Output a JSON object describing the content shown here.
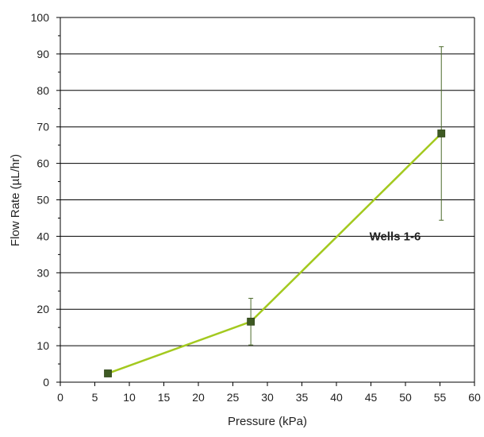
{
  "chart_data": {
    "type": "line",
    "title": "",
    "xlabel": "Pressure (kPa)",
    "ylabel": "Flow Rate (µL/hr)",
    "xlim": [
      0,
      60
    ],
    "ylim": [
      0,
      100
    ],
    "x_ticks": [
      0,
      5,
      10,
      15,
      20,
      25,
      30,
      35,
      40,
      45,
      50,
      55,
      60
    ],
    "y_ticks": [
      0,
      10,
      20,
      30,
      40,
      50,
      60,
      70,
      80,
      90,
      100
    ],
    "grid": "horizontal major gridlines",
    "series": [
      {
        "name": "Wells 1-6",
        "x": [
          6.9,
          27.6,
          55.2
        ],
        "y": [
          2.4,
          16.6,
          68.2
        ],
        "error": [
          0.8,
          6.4,
          23.8
        ],
        "line_color": "#a3c91f",
        "marker_color": "#3e5a23",
        "error_color": "#4d6b2c"
      }
    ],
    "annotations": [
      {
        "text": "Wells 1-6",
        "x": 48.5,
        "y": 40
      }
    ]
  }
}
